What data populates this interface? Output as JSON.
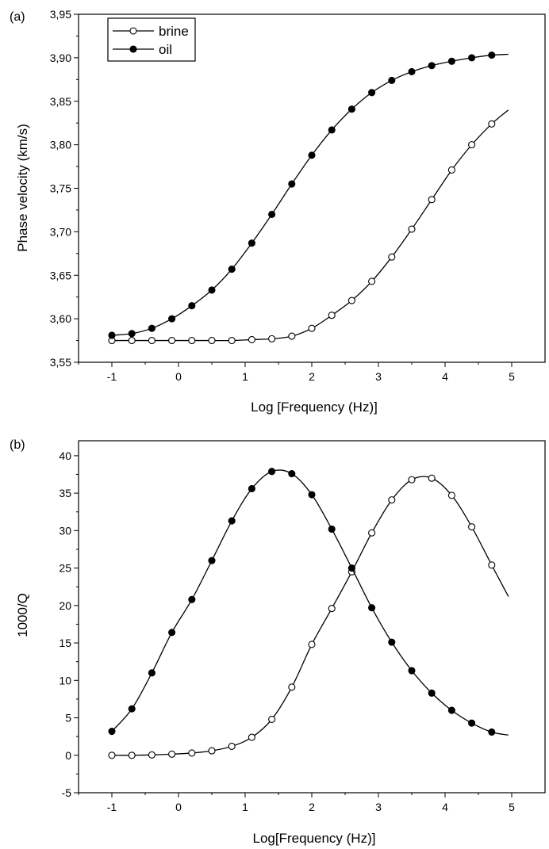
{
  "chart_data": [
    {
      "type": "line",
      "panel_label": "(a)",
      "xlabel": "Log [Frequency (Hz)]",
      "ylabel": "Phase velocity (km/s)",
      "xlim": [
        -1.5,
        5.5
      ],
      "ylim": [
        3.55,
        3.95
      ],
      "x_ticks": [
        -1,
        0,
        1,
        2,
        3,
        4,
        5
      ],
      "x_tick_labels": [
        "-1",
        "0",
        "1",
        "2",
        "3",
        "4",
        "5"
      ],
      "y_ticks": [
        3.55,
        3.6,
        3.65,
        3.7,
        3.75,
        3.8,
        3.85,
        3.9,
        3.95
      ],
      "y_tick_labels": [
        "3,55",
        "3,60",
        "3,65",
        "3,70",
        "3,75",
        "3,80",
        "3,85",
        "3,90",
        "3,95"
      ],
      "legend": {
        "placement": "top-left",
        "entries": [
          "brine",
          "oil"
        ]
      },
      "x": [
        -1,
        -0.7,
        -0.4,
        -0.1,
        0.2,
        0.5,
        0.8,
        1.1,
        1.4,
        1.7,
        2.0,
        2.3,
        2.6,
        2.9,
        3.2,
        3.5,
        3.8,
        4.1,
        4.4,
        4.7
      ],
      "series": [
        {
          "name": "brine",
          "marker": "open-circle",
          "values": [
            3.575,
            3.575,
            3.575,
            3.575,
            3.575,
            3.575,
            3.575,
            3.576,
            3.577,
            3.58,
            3.589,
            3.604,
            3.621,
            3.643,
            3.671,
            3.703,
            3.737,
            3.771,
            3.8,
            3.824
          ],
          "curve_end": [
            4.95,
            3.84
          ]
        },
        {
          "name": "oil",
          "marker": "filled-circle",
          "values": [
            3.581,
            3.583,
            3.589,
            3.6,
            3.615,
            3.633,
            3.657,
            3.687,
            3.72,
            3.755,
            3.788,
            3.817,
            3.841,
            3.86,
            3.874,
            3.884,
            3.891,
            3.896,
            3.9,
            3.903
          ],
          "curve_end": [
            4.95,
            3.904
          ]
        }
      ]
    },
    {
      "type": "line",
      "panel_label": "(b)",
      "xlabel": "Log[Frequency (Hz)]",
      "ylabel": "1000/Q",
      "xlim": [
        -1.5,
        5.5
      ],
      "ylim": [
        -5,
        42
      ],
      "x_ticks": [
        -1,
        0,
        1,
        2,
        3,
        4,
        5
      ],
      "x_tick_labels": [
        "-1",
        "0",
        "1",
        "2",
        "3",
        "4",
        "5"
      ],
      "y_ticks": [
        -5,
        0,
        5,
        10,
        15,
        20,
        25,
        30,
        35,
        40
      ],
      "y_tick_labels": [
        "-5",
        "0",
        "5",
        "10",
        "15",
        "20",
        "25",
        "30",
        "35",
        "40"
      ],
      "x": [
        -1,
        -0.7,
        -0.4,
        -0.1,
        0.2,
        0.5,
        0.8,
        1.1,
        1.4,
        1.7,
        2.0,
        2.3,
        2.6,
        2.9,
        3.2,
        3.5,
        3.8,
        4.1,
        4.4,
        4.7
      ],
      "series": [
        {
          "name": "brine",
          "marker": "open-circle",
          "values": [
            0.0,
            0.0,
            0.05,
            0.15,
            0.3,
            0.6,
            1.2,
            2.4,
            4.8,
            9.1,
            14.8,
            19.6,
            24.5,
            29.7,
            34.1,
            36.8,
            37.0,
            34.7,
            30.5,
            25.4
          ],
          "curve_end": [
            4.95,
            21.2
          ]
        },
        {
          "name": "oil",
          "marker": "filled-circle",
          "values": [
            3.2,
            6.2,
            11.0,
            16.4,
            20.8,
            26.0,
            31.3,
            35.6,
            37.9,
            37.6,
            34.8,
            30.2,
            25.0,
            19.7,
            15.1,
            11.3,
            8.3,
            6.0,
            4.3,
            3.1
          ],
          "curve_end": [
            4.95,
            2.7
          ]
        }
      ]
    }
  ]
}
